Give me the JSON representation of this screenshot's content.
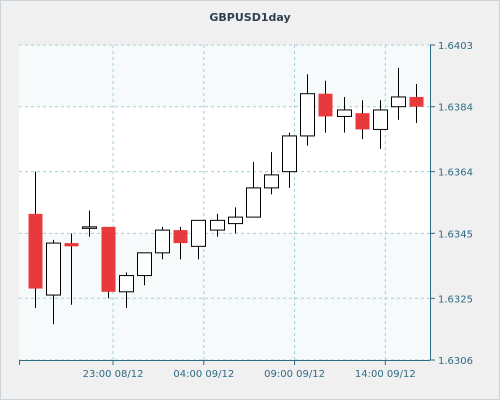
{
  "chart_data": {
    "type": "candlestick",
    "title": "GBPUSD1day",
    "ylim": [
      1.6306,
      1.6403
    ],
    "yticks": [
      1.6306,
      1.6325,
      1.6345,
      1.6364,
      1.6384,
      1.6403
    ],
    "ytick_labels": [
      "1.6306",
      "1.6325",
      "1.6345",
      "1.6364",
      "1.6384",
      "1.6403"
    ],
    "xtick_labels": [
      "23:00 08/12",
      "04:00 09/12",
      "09:00 09/12",
      "14:00 09/12"
    ],
    "xtick_slots": [
      4.3,
      9.3,
      14.3,
      19.3
    ],
    "grid": true,
    "up_color": "#ffffff",
    "down_color": "#e8393c",
    "candles": [
      {
        "open": 1.6351,
        "high": 1.6364,
        "low": 1.6322,
        "close": 1.6328
      },
      {
        "open": 1.6326,
        "high": 1.6343,
        "low": 1.6317,
        "close": 1.6342
      },
      {
        "open": 1.6342,
        "high": 1.6345,
        "low": 1.6323,
        "close": 1.6341
      },
      {
        "open": 1.6347,
        "high": 1.6352,
        "low": 1.6344,
        "close": 1.6347
      },
      {
        "open": 1.6347,
        "high": 1.6347,
        "low": 1.6325,
        "close": 1.6327
      },
      {
        "open": 1.6327,
        "high": 1.6333,
        "low": 1.6322,
        "close": 1.6332
      },
      {
        "open": 1.6332,
        "high": 1.6339,
        "low": 1.6329,
        "close": 1.6339
      },
      {
        "open": 1.6339,
        "high": 1.6347,
        "low": 1.6337,
        "close": 1.6346
      },
      {
        "open": 1.6346,
        "high": 1.6347,
        "low": 1.6337,
        "close": 1.6342
      },
      {
        "open": 1.6341,
        "high": 1.6349,
        "low": 1.6337,
        "close": 1.6349
      },
      {
        "open": 1.6346,
        "high": 1.6351,
        "low": 1.6344,
        "close": 1.6349
      },
      {
        "open": 1.6348,
        "high": 1.6353,
        "low": 1.6345,
        "close": 1.635
      },
      {
        "open": 1.635,
        "high": 1.6367,
        "low": 1.635,
        "close": 1.6359
      },
      {
        "open": 1.6359,
        "high": 1.637,
        "low": 1.6357,
        "close": 1.6363
      },
      {
        "open": 1.6364,
        "high": 1.6376,
        "low": 1.6359,
        "close": 1.6375
      },
      {
        "open": 1.6375,
        "high": 1.6394,
        "low": 1.6372,
        "close": 1.6388
      },
      {
        "open": 1.6388,
        "high": 1.6392,
        "low": 1.6376,
        "close": 1.6381
      },
      {
        "open": 1.6381,
        "high": 1.6387,
        "low": 1.6376,
        "close": 1.6383
      },
      {
        "open": 1.6382,
        "high": 1.6386,
        "low": 1.6374,
        "close": 1.6377
      },
      {
        "open": 1.6377,
        "high": 1.6386,
        "low": 1.6371,
        "close": 1.6383
      },
      {
        "open": 1.6384,
        "high": 1.6396,
        "low": 1.638,
        "close": 1.6387
      },
      {
        "open": 1.6387,
        "high": 1.6391,
        "low": 1.6379,
        "close": 1.6384
      }
    ]
  }
}
